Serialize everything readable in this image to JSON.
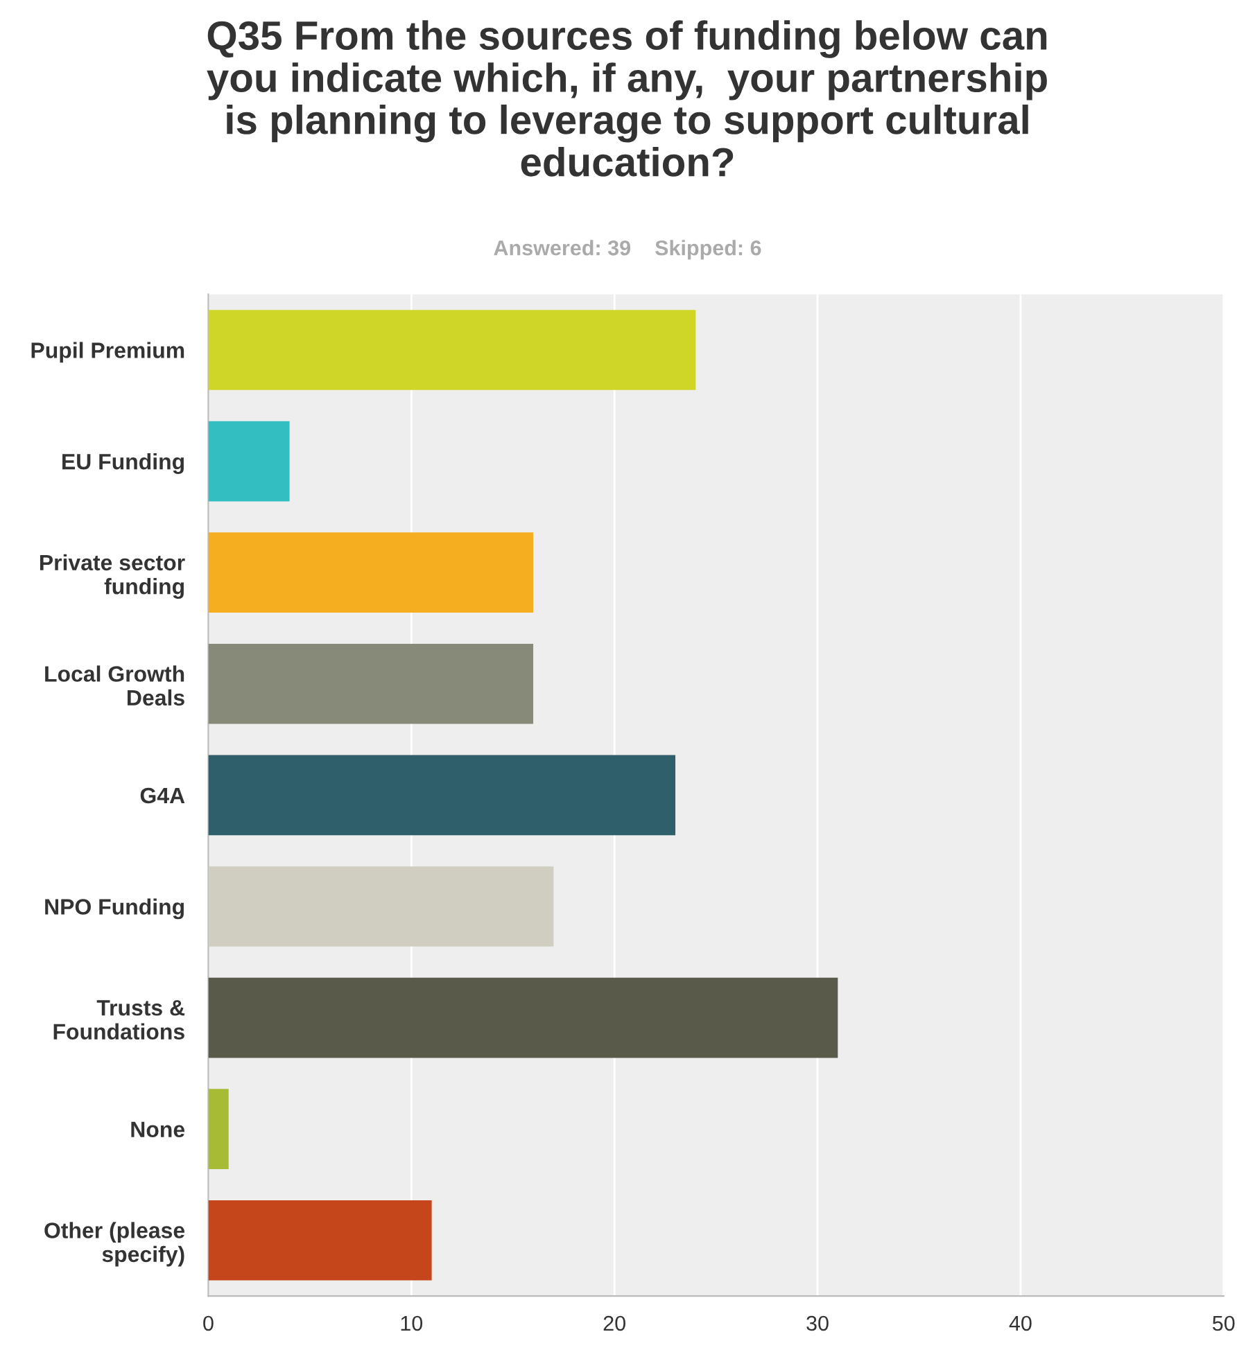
{
  "chart_data": {
    "type": "bar",
    "orientation": "horizontal",
    "title": "Q35 From the sources of funding below can\nyou indicate which, if any,  your partnership\nis planning to leverage to support cultural\neducation?",
    "subtitle": "Answered: 39    Skipped: 6",
    "categories": [
      "Pupil Premium",
      "EU Funding",
      "Private sector\nfunding",
      "Local Growth\nDeals",
      "G4A",
      "NPO Funding",
      "Trusts &\nFoundations",
      "None",
      "Other (please\nspecify)"
    ],
    "values": [
      24,
      4,
      16,
      16,
      23,
      17,
      31,
      1,
      11
    ],
    "colors": [
      "#d0d628",
      "#33bfc1",
      "#f5ae1f",
      "#888a79",
      "#2e5f6b",
      "#d0cec0",
      "#5a5a4b",
      "#a8bb35",
      "#c6461c"
    ],
    "xlim": [
      0,
      50
    ],
    "xticks": [
      0,
      10,
      20,
      30,
      40,
      50
    ],
    "grid": "x",
    "legend": false
  }
}
